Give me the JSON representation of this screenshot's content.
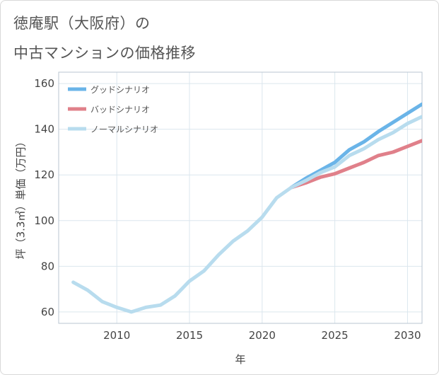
{
  "title_lines": [
    "徳庵駅（大阪府）の",
    "中古マンションの価格推移"
  ],
  "chart_data": {
    "type": "line",
    "title": "徳庵駅（大阪府）の中古マンションの価格推移",
    "xlabel": "年",
    "ylabel": "坪（3.3㎡）単価（万円）",
    "xlim": [
      2006,
      2031
    ],
    "ylim": [
      55,
      165
    ],
    "xticks": [
      2010,
      2015,
      2020,
      2025,
      2030
    ],
    "yticks": [
      60,
      80,
      100,
      120,
      140,
      160
    ],
    "grid": true,
    "legend_position": "top-left",
    "series": [
      {
        "name": "グッドシナリオ",
        "color": "#6ab4e8",
        "x": [
          2022,
          2023,
          2024,
          2025,
          2026,
          2027,
          2028,
          2029,
          2030,
          2031
        ],
        "values": [
          114.5,
          118.5,
          122,
          125.5,
          131,
          134.5,
          139,
          143,
          147,
          151
        ]
      },
      {
        "name": "バッドシナリオ",
        "color": "#e0808a",
        "x": [
          2022,
          2023,
          2024,
          2025,
          2026,
          2027,
          2028,
          2029,
          2030,
          2031
        ],
        "values": [
          114.5,
          116.5,
          119,
          120.5,
          123,
          125.5,
          128.5,
          130,
          132.5,
          135
        ]
      },
      {
        "name": "ノーマルシナリオ",
        "color": "#b8dcee",
        "x": [
          2007,
          2008,
          2009,
          2010,
          2011,
          2012,
          2013,
          2014,
          2015,
          2016,
          2017,
          2018,
          2019,
          2020,
          2021,
          2022,
          2023,
          2024,
          2025,
          2026,
          2027,
          2028,
          2029,
          2030,
          2031
        ],
        "values": [
          73,
          69.5,
          64.5,
          62,
          60,
          62,
          63,
          67,
          73.5,
          78,
          85,
          91,
          95.5,
          101.5,
          110,
          114.5,
          117.5,
          121,
          123.5,
          128.5,
          131.5,
          135.5,
          138.5,
          142.5,
          145.5
        ]
      }
    ]
  }
}
